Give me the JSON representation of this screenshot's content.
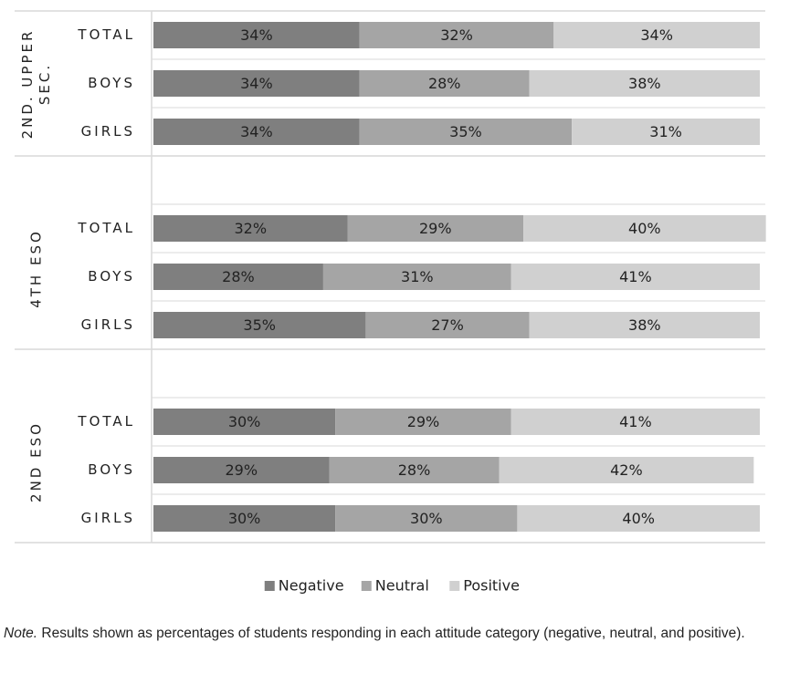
{
  "chart_data": {
    "type": "stacked-barh",
    "groups": [
      {
        "name": "2ND. UPPER SEC.",
        "categories": [
          "TOTAL",
          "BOYS",
          "GIRLS"
        ]
      },
      {
        "name": "4TH ESO",
        "categories": [
          "TOTAL",
          "BOYS",
          "GIRLS"
        ]
      },
      {
        "name": "2ND ESO",
        "categories": [
          "TOTAL",
          "BOYS",
          "GIRLS"
        ]
      }
    ],
    "series": [
      {
        "name": "Negative",
        "color": "#7f7f7f",
        "values": [
          34,
          34,
          34,
          32,
          28,
          35,
          30,
          29,
          30
        ],
        "value_labels": [
          "34%",
          "34%",
          "34%",
          "32%",
          "28%",
          "35%",
          "30%",
          "29%",
          "30%"
        ]
      },
      {
        "name": "Neutral",
        "color": "#a5a5a5",
        "values": [
          32,
          28,
          35,
          29,
          31,
          27,
          29,
          28,
          30
        ],
        "value_labels": [
          "32%",
          "28%",
          "35%",
          "29%",
          "31%",
          "27%",
          "29%",
          "28%",
          "30%"
        ]
      },
      {
        "name": "Positive",
        "color": "#d0d0d0",
        "values": [
          34,
          38,
          31,
          40,
          41,
          38,
          41,
          42,
          40
        ],
        "value_labels": [
          "34%",
          "38%",
          "31%",
          "40%",
          "41%",
          "38%",
          "41%",
          "42%",
          "40%"
        ]
      }
    ],
    "xlim": [
      0,
      100
    ],
    "legend": "bottom"
  },
  "note_label": "Note.",
  "note": "Results shown as percentages of students responding in each attitude category (negative, neutral, and positive)."
}
